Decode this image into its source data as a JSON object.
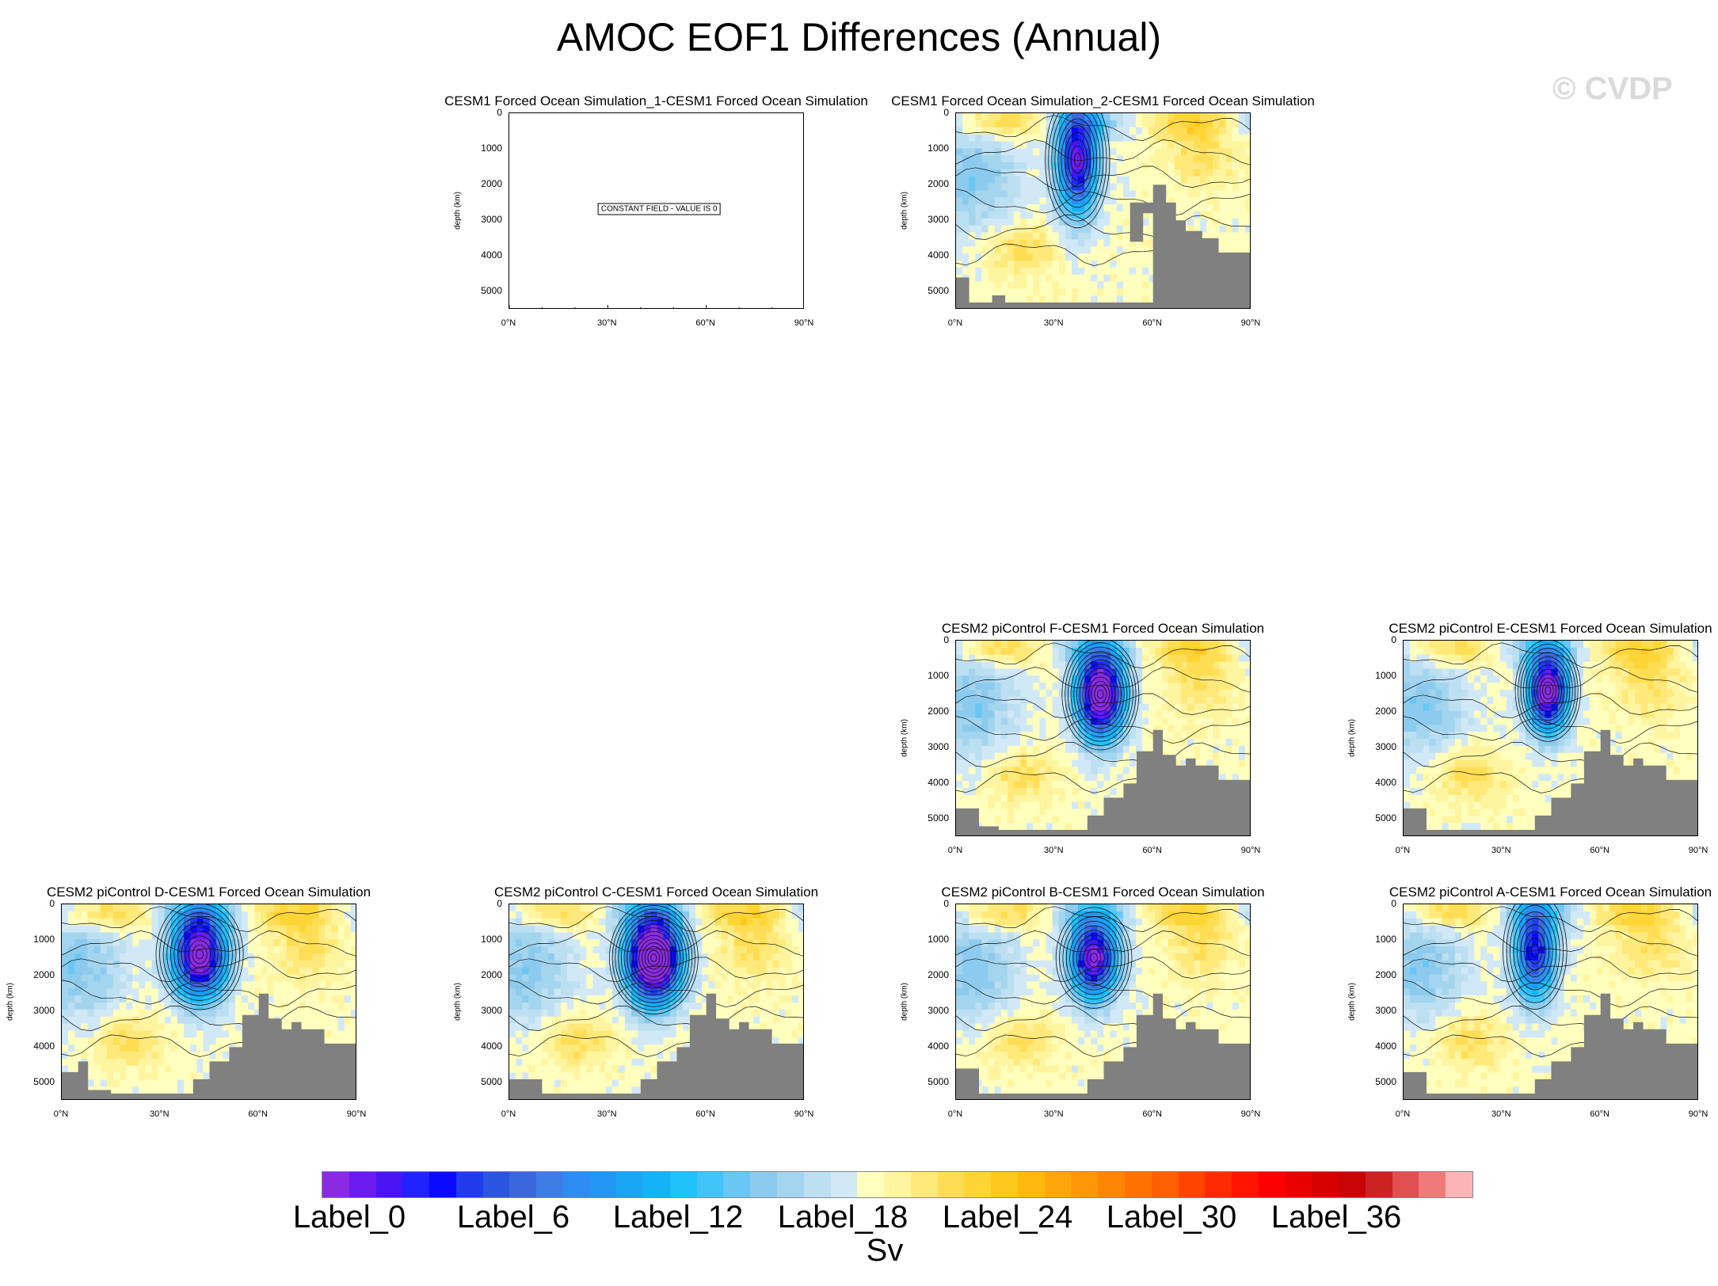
{
  "title": "AMOC EOF1 Differences (Annual)",
  "watermark": "© CVDP",
  "colors": {
    "land": "#808080",
    "contour": "#111111",
    "palette": [
      "#8a2be2",
      "#6a1bf0",
      "#4b14f5",
      "#2222ff",
      "#0a0aff",
      "#1f3bec",
      "#2b55e0",
      "#3a68dc",
      "#3d7ee6",
      "#2f8cf2",
      "#2196f3",
      "#1aa5f5",
      "#16b2f7",
      "#1ec3fa",
      "#43c4f7",
      "#6ac6f2",
      "#8ccbee",
      "#a4d5ee",
      "#bcdff2",
      "#d1e8f6",
      "#ffffbe",
      "#fff5a0",
      "#ffe97a",
      "#ffde55",
      "#ffd535",
      "#ffc81e",
      "#ffb90d",
      "#ffa60a",
      "#ff9608",
      "#ff8505",
      "#ff7200",
      "#ff5f00",
      "#ff4400",
      "#ff2a00",
      "#ff1400",
      "#ff0000",
      "#e80000",
      "#d70000",
      "#c80404",
      "#cb2222",
      "#e05050",
      "#ef7a7a",
      "#fcb4b4"
    ]
  },
  "colorbar": {
    "labels": [
      "Label_0",
      "Label_6",
      "Label_12",
      "Label_18",
      "Label_24",
      "Label_30",
      "Label_36"
    ],
    "units": "Sv"
  },
  "chart_data": [
    {
      "type": "contour",
      "title": "CESM1 Forced Ocean Simulation_1-CESM1 Forced Ocean Simulation",
      "ylabel": "depth (km)",
      "yticks": [
        "0",
        "1000",
        "2000",
        "3000",
        "4000",
        "5000"
      ],
      "xticks": [
        "0°N",
        "30°N",
        "60°N",
        "90°N"
      ],
      "xlim": [
        0,
        90
      ],
      "ylim": [
        0,
        5500
      ],
      "constant_field": true,
      "message": "CONSTANT FIELD - VALUE IS 0",
      "core": null,
      "bathymetry": []
    },
    {
      "type": "contour",
      "title": "CESM1 Forced Ocean Simulation_2-CESM1 Forced Ocean Simulation",
      "ylabel": "depth (km)",
      "yticks": [
        "0",
        "1000",
        "2000",
        "3000",
        "4000",
        "5000"
      ],
      "xticks": [
        "0°N",
        "30°N",
        "60°N",
        "90°N"
      ],
      "xlim": [
        0,
        90
      ],
      "ylim": [
        0,
        5500
      ],
      "constant_field": false,
      "core": {
        "lat": 37,
        "depth": 1300,
        "spread_lat": 6,
        "spread_depth": 1500,
        "strength": 1.0
      },
      "bathymetry": [
        [
          0,
          4600
        ],
        [
          4,
          4600
        ],
        [
          4,
          5300
        ],
        [
          11,
          5300
        ],
        [
          11,
          5100
        ],
        [
          15,
          5100
        ],
        [
          15,
          5300
        ],
        [
          60,
          5300
        ],
        [
          60,
          2500
        ],
        [
          53,
          2500
        ],
        [
          53,
          3600
        ],
        [
          57,
          3600
        ],
        [
          57,
          2800
        ],
        [
          60,
          2800
        ],
        [
          60,
          2000
        ],
        [
          64,
          2000
        ],
        [
          64,
          2500
        ],
        [
          67,
          2500
        ],
        [
          67,
          3000
        ],
        [
          70,
          3000
        ],
        [
          70,
          3300
        ],
        [
          75,
          3300
        ],
        [
          75,
          3500
        ],
        [
          80,
          3500
        ],
        [
          80,
          3900
        ],
        [
          90,
          3900
        ]
      ]
    },
    {
      "type": "contour",
      "title": "CESM2 piControl F-CESM1 Forced Ocean Simulation",
      "ylabel": "depth (km)",
      "yticks": [
        "0",
        "1000",
        "2000",
        "3000",
        "4000",
        "5000"
      ],
      "xticks": [
        "0°N",
        "30°N",
        "60°N",
        "90°N"
      ],
      "xlim": [
        0,
        90
      ],
      "ylim": [
        0,
        5500
      ],
      "constant_field": false,
      "core": {
        "lat": 44,
        "depth": 1500,
        "spread_lat": 7,
        "spread_depth": 1200,
        "strength": 1.3
      },
      "bathymetry": [
        [
          0,
          4700
        ],
        [
          7,
          4700
        ],
        [
          7,
          5200
        ],
        [
          13,
          5200
        ],
        [
          13,
          5300
        ],
        [
          40,
          5300
        ],
        [
          40,
          4900
        ],
        [
          45,
          4900
        ],
        [
          45,
          4400
        ],
        [
          51,
          4400
        ],
        [
          51,
          4000
        ],
        [
          55,
          4000
        ],
        [
          55,
          3100
        ],
        [
          60,
          3100
        ],
        [
          60,
          2500
        ],
        [
          63,
          2500
        ],
        [
          63,
          3200
        ],
        [
          67,
          3200
        ],
        [
          67,
          3500
        ],
        [
          70,
          3500
        ],
        [
          70,
          3300
        ],
        [
          73,
          3300
        ],
        [
          73,
          3500
        ],
        [
          80,
          3500
        ],
        [
          80,
          3900
        ],
        [
          90,
          3900
        ]
      ]
    },
    {
      "type": "contour",
      "title": "CESM2 piControl E-CESM1 Forced Ocean Simulation",
      "ylabel": "depth (km)",
      "yticks": [
        "0",
        "1000",
        "2000",
        "3000",
        "4000",
        "5000"
      ],
      "xticks": [
        "0°N",
        "30°N",
        "60°N",
        "90°N"
      ],
      "xlim": [
        0,
        90
      ],
      "ylim": [
        0,
        5500
      ],
      "constant_field": false,
      "core": {
        "lat": 44,
        "depth": 1400,
        "spread_lat": 6,
        "spread_depth": 1100,
        "strength": 1.2
      },
      "bathymetry": [
        [
          0,
          4700
        ],
        [
          7,
          4700
        ],
        [
          7,
          5300
        ],
        [
          40,
          5300
        ],
        [
          40,
          4900
        ],
        [
          45,
          4900
        ],
        [
          45,
          4400
        ],
        [
          51,
          4400
        ],
        [
          51,
          4000
        ],
        [
          55,
          4000
        ],
        [
          55,
          3100
        ],
        [
          60,
          3100
        ],
        [
          60,
          2500
        ],
        [
          63,
          2500
        ],
        [
          63,
          3200
        ],
        [
          67,
          3200
        ],
        [
          67,
          3500
        ],
        [
          70,
          3500
        ],
        [
          70,
          3300
        ],
        [
          73,
          3300
        ],
        [
          73,
          3500
        ],
        [
          80,
          3500
        ],
        [
          80,
          3900
        ],
        [
          90,
          3900
        ]
      ]
    },
    {
      "type": "contour",
      "title": "CESM2 piControl D-CESM1 Forced Ocean Simulation",
      "ylabel": "depth (km)",
      "yticks": [
        "0",
        "1000",
        "2000",
        "3000",
        "4000",
        "5000"
      ],
      "xticks": [
        "0°N",
        "30°N",
        "60°N",
        "90°N"
      ],
      "xlim": [
        0,
        90
      ],
      "ylim": [
        0,
        5500
      ],
      "constant_field": false,
      "core": {
        "lat": 42,
        "depth": 1400,
        "spread_lat": 8,
        "spread_depth": 1200,
        "strength": 1.2
      },
      "bathymetry": [
        [
          0,
          4700
        ],
        [
          5,
          4700
        ],
        [
          5,
          4400
        ],
        [
          8,
          4400
        ],
        [
          8,
          5200
        ],
        [
          15,
          5200
        ],
        [
          15,
          5300
        ],
        [
          40,
          5300
        ],
        [
          40,
          4900
        ],
        [
          45,
          4900
        ],
        [
          45,
          4400
        ],
        [
          51,
          4400
        ],
        [
          51,
          4000
        ],
        [
          55,
          4000
        ],
        [
          55,
          3100
        ],
        [
          60,
          3100
        ],
        [
          60,
          2500
        ],
        [
          63,
          2500
        ],
        [
          63,
          3200
        ],
        [
          67,
          3200
        ],
        [
          67,
          3500
        ],
        [
          70,
          3500
        ],
        [
          70,
          3300
        ],
        [
          73,
          3300
        ],
        [
          73,
          3500
        ],
        [
          80,
          3500
        ],
        [
          80,
          3900
        ],
        [
          90,
          3900
        ]
      ]
    },
    {
      "type": "contour",
      "title": "CESM2 piControl C-CESM1 Forced Ocean Simulation",
      "ylabel": "depth (km)",
      "yticks": [
        "0",
        "1000",
        "2000",
        "3000",
        "4000",
        "5000"
      ],
      "xticks": [
        "0°N",
        "30°N",
        "60°N",
        "90°N"
      ],
      "xlim": [
        0,
        90
      ],
      "ylim": [
        0,
        5500
      ],
      "constant_field": false,
      "core": {
        "lat": 44,
        "depth": 1500,
        "spread_lat": 8,
        "spread_depth": 1200,
        "strength": 1.5
      },
      "bathymetry": [
        [
          0,
          4900
        ],
        [
          10,
          4900
        ],
        [
          10,
          5300
        ],
        [
          40,
          5300
        ],
        [
          40,
          4900
        ],
        [
          45,
          4900
        ],
        [
          45,
          4400
        ],
        [
          51,
          4400
        ],
        [
          51,
          4000
        ],
        [
          55,
          4000
        ],
        [
          55,
          3100
        ],
        [
          60,
          3100
        ],
        [
          60,
          2500
        ],
        [
          63,
          2500
        ],
        [
          63,
          3200
        ],
        [
          67,
          3200
        ],
        [
          67,
          3500
        ],
        [
          70,
          3500
        ],
        [
          70,
          3300
        ],
        [
          73,
          3300
        ],
        [
          73,
          3500
        ],
        [
          80,
          3500
        ],
        [
          80,
          3900
        ],
        [
          90,
          3900
        ]
      ]
    },
    {
      "type": "contour",
      "title": "CESM2 piControl B-CESM1 Forced Ocean Simulation",
      "ylabel": "depth (km)",
      "yticks": [
        "0",
        "1000",
        "2000",
        "3000",
        "4000",
        "5000"
      ],
      "xticks": [
        "0°N",
        "30°N",
        "60°N",
        "90°N"
      ],
      "xlim": [
        0,
        90
      ],
      "ylim": [
        0,
        5500
      ],
      "constant_field": false,
      "core": {
        "lat": 42,
        "depth": 1500,
        "spread_lat": 7,
        "spread_depth": 1100,
        "strength": 1.1
      },
      "bathymetry": [
        [
          0,
          4600
        ],
        [
          7,
          4600
        ],
        [
          7,
          5300
        ],
        [
          40,
          5300
        ],
        [
          40,
          4900
        ],
        [
          45,
          4900
        ],
        [
          45,
          4400
        ],
        [
          51,
          4400
        ],
        [
          51,
          4000
        ],
        [
          55,
          4000
        ],
        [
          55,
          3100
        ],
        [
          60,
          3100
        ],
        [
          60,
          2500
        ],
        [
          63,
          2500
        ],
        [
          63,
          3200
        ],
        [
          67,
          3200
        ],
        [
          67,
          3500
        ],
        [
          70,
          3500
        ],
        [
          70,
          3300
        ],
        [
          73,
          3300
        ],
        [
          73,
          3500
        ],
        [
          80,
          3500
        ],
        [
          80,
          3900
        ],
        [
          90,
          3900
        ]
      ]
    },
    {
      "type": "contour",
      "title": "CESM2 piControl A-CESM1 Forced Ocean Simulation",
      "ylabel": "depth (km)",
      "yticks": [
        "0",
        "1000",
        "2000",
        "3000",
        "4000",
        "5000"
      ],
      "xticks": [
        "0°N",
        "30°N",
        "60°N",
        "90°N"
      ],
      "xlim": [
        0,
        90
      ],
      "ylim": [
        0,
        5500
      ],
      "constant_field": false,
      "core": {
        "lat": 40,
        "depth": 1300,
        "spread_lat": 6,
        "spread_depth": 1300,
        "strength": 0.9
      },
      "bathymetry": [
        [
          0,
          4700
        ],
        [
          7,
          4700
        ],
        [
          7,
          5300
        ],
        [
          40,
          5300
        ],
        [
          40,
          4900
        ],
        [
          45,
          4900
        ],
        [
          45,
          4400
        ],
        [
          51,
          4400
        ],
        [
          51,
          4000
        ],
        [
          55,
          4000
        ],
        [
          55,
          3100
        ],
        [
          60,
          3100
        ],
        [
          60,
          2500
        ],
        [
          63,
          2500
        ],
        [
          63,
          3200
        ],
        [
          67,
          3200
        ],
        [
          67,
          3500
        ],
        [
          70,
          3500
        ],
        [
          70,
          3300
        ],
        [
          73,
          3300
        ],
        [
          73,
          3500
        ],
        [
          80,
          3500
        ],
        [
          80,
          3900
        ],
        [
          90,
          3900
        ]
      ]
    }
  ]
}
